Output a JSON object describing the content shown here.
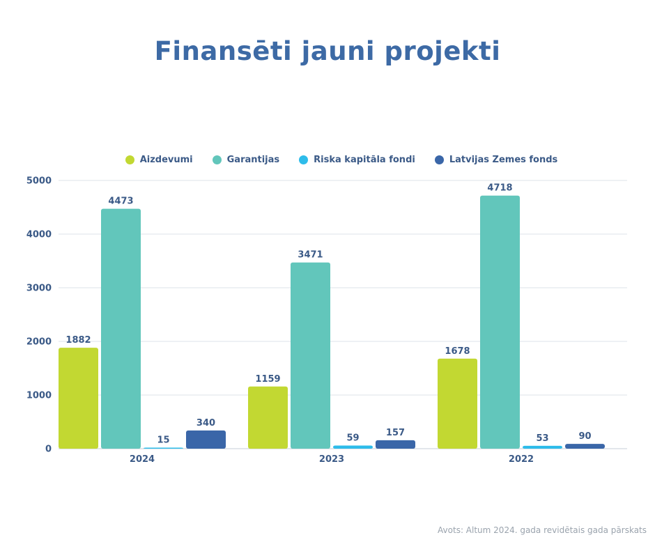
{
  "colors": {
    "title": "#3d6aa5",
    "axis_text": "#3b5a87",
    "gridline": "#dde3ea",
    "source_text": "#9aa3ad"
  },
  "chart_data": {
    "type": "bar",
    "title": "Finansēti jauni projekti",
    "categories": [
      "2024",
      "2023",
      "2022"
    ],
    "series": [
      {
        "name": "Aizdevumi",
        "color": "#c2d832",
        "values": [
          1882,
          1159,
          1678
        ]
      },
      {
        "name": "Garantijas",
        "color": "#62c6bb",
        "values": [
          4473,
          3471,
          4718
        ]
      },
      {
        "name": "Riska kapitāla fondi",
        "color": "#2ebcea",
        "values": [
          15,
          59,
          53
        ]
      },
      {
        "name": "Latvijas Zemes fonds",
        "color": "#3a66a8",
        "values": [
          340,
          157,
          90
        ]
      }
    ],
    "ylim": [
      0,
      5000
    ],
    "yticks": [
      0,
      1000,
      2000,
      3000,
      4000,
      5000
    ],
    "grid": true,
    "legend_position": "top-center",
    "data_labels": true
  },
  "source": "Avots: Altum 2024. gada revidētais gada pārskats"
}
